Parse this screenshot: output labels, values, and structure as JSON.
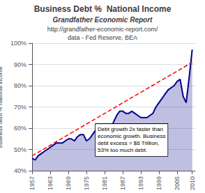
{
  "chart_data": {
    "type": "area",
    "title": "Business Debt %  National Income",
    "subtitle": [
      "Grandfather Economic Report",
      "http://grandfather-economic-report.com/",
      "data - Fed Reserve, BEA"
    ],
    "ylabel": "business debt % national income",
    "x": [
      1957,
      1958,
      1959,
      1960,
      1961,
      1962,
      1963,
      1964,
      1965,
      1966,
      1967,
      1968,
      1969,
      1970,
      1971,
      1972,
      1973,
      1974,
      1975,
      1976,
      1977,
      1978,
      1979,
      1980,
      1981,
      1982,
      1983,
      1984,
      1985,
      1986,
      1987,
      1988,
      1989,
      1990,
      1991,
      1992,
      1993,
      1994,
      1995,
      1996,
      1997,
      1998,
      1999,
      2000,
      2001,
      2002,
      2003,
      2004,
      2005,
      2006,
      2007,
      2008,
      2009,
      2010
    ],
    "series": [
      {
        "color": "#00008B",
        "values": [
          46,
          45,
          47,
          48,
          49,
          50,
          51,
          52,
          53,
          53,
          53,
          54,
          55,
          55,
          54,
          56,
          57,
          57,
          54,
          55,
          57,
          59,
          60,
          60,
          60,
          59,
          60,
          63,
          66,
          68,
          68,
          67,
          67,
          68,
          67,
          66,
          65,
          65,
          65,
          66,
          67,
          70,
          72,
          74,
          76,
          78,
          79,
          80,
          82,
          83,
          75,
          72,
          84,
          97
        ]
      },
      {
        "type": "line",
        "color": "#FF0000",
        "line_style": "dashed",
        "x": [
          1957,
          2010
        ],
        "values": [
          47,
          91
        ]
      }
    ],
    "xlim": [
      1957,
      2011
    ],
    "xticks": [
      1957,
      1963,
      1969,
      1975,
      1981,
      1987,
      1993,
      1999,
      2005,
      2010
    ],
    "ylim": [
      40,
      100
    ],
    "yticks": [
      {
        "value": 40,
        "label": "40%"
      },
      {
        "value": 50,
        "label": "50%"
      },
      {
        "value": 60,
        "label": "60%"
      },
      {
        "value": 70,
        "label": "70%"
      },
      {
        "value": 80,
        "label": "80%"
      },
      {
        "value": 90,
        "label": "90%"
      },
      {
        "value": 100,
        "label": "100%"
      }
    ],
    "grid": true,
    "annotations": [
      {
        "text": "Debt growth 2x faster than\neconomic growth. Business\ndebt excess = $6 Trillion,\n53% too much debt.",
        "x": 1978,
        "y": 62
      }
    ]
  }
}
